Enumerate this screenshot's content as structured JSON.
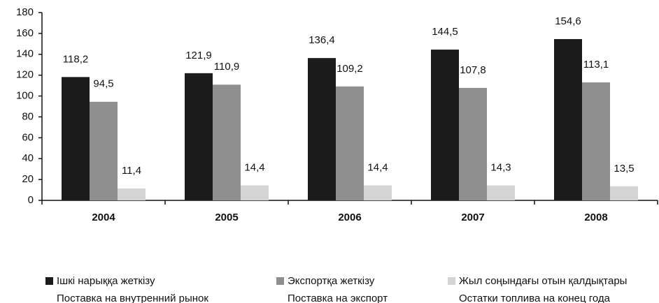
{
  "chart_data": {
    "type": "bar",
    "categories": [
      "2004",
      "2005",
      "2006",
      "2007",
      "2008"
    ],
    "series": [
      {
        "name": "Ішкі нарыққа жеткізу",
        "name_ru": "Поставка на внутренний рынок",
        "color": "#1c1c1c",
        "values": [
          118.2,
          121.9,
          136.4,
          144.5,
          154.6
        ],
        "value_labels": [
          "118,2",
          "121,9",
          "136,4",
          "144,5",
          "154,6"
        ]
      },
      {
        "name": "Экспортқа жеткізу",
        "name_ru": "Поставка на экспорт",
        "color": "#8f8f8f",
        "values": [
          94.5,
          110.9,
          109.2,
          107.8,
          113.1
        ],
        "value_labels": [
          "94,5",
          "110,9",
          "109,2",
          "107,8",
          "113,1"
        ]
      },
      {
        "name": "Жыл соңындағы отын қалдықтары",
        "name_ru": "Остатки топлива на конец года",
        "color": "#d4d4d4",
        "values": [
          11.4,
          14.4,
          14.4,
          14.3,
          13.5
        ],
        "value_labels": [
          "11,4",
          "14,4",
          "14,4",
          "14,3",
          "13,5"
        ]
      }
    ],
    "ylim": [
      0,
      180
    ],
    "yticks": [
      0,
      20,
      40,
      60,
      80,
      100,
      120,
      140,
      160,
      180
    ],
    "grid": false,
    "legend": "bottom"
  }
}
